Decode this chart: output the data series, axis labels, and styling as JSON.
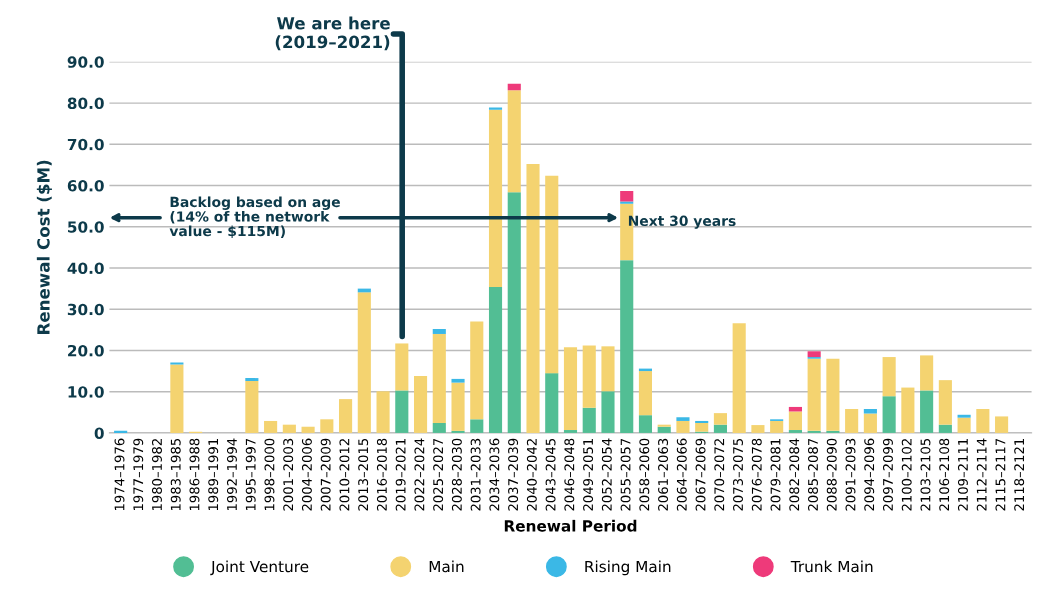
{
  "chart_data": {
    "type": "bar",
    "stacked": true,
    "xlabel": "Renewal Period",
    "ylabel": "Renewal Cost ($M)",
    "categories": [
      "1974–1976",
      "1977–1979",
      "1980–1982",
      "1983–1985",
      "1986–1988",
      "1989–1991",
      "1992–1994",
      "1995–1997",
      "1998–2000",
      "2001–2003",
      "2004–2006",
      "2007–2009",
      "2010–2012",
      "2013–2015",
      "2016–2018",
      "2019–2021",
      "2022–2024",
      "2025–2027",
      "2028–2030",
      "2031–2033",
      "2034–2036",
      "2037–2039",
      "2040–2042",
      "2043–2045",
      "2046–2048",
      "2049–2051",
      "2052–2054",
      "2055–2057",
      "2058–2060",
      "2061–2063",
      "2064–2066",
      "2067–2069",
      "2070–2072",
      "2073–2075",
      "2076–2078",
      "2079–2081",
      "2082–2084",
      "2085–2087",
      "2088–2090",
      "2091–2093",
      "2094–2096",
      "2097–2099",
      "2100–2102",
      "2103–2105",
      "2106–2108",
      "2109–2111",
      "2112–2114",
      "2115–2117",
      "2118–2121"
    ],
    "series": [
      {
        "name": "Joint Venture",
        "color": "#52be94",
        "values": [
          0,
          0,
          0,
          0,
          0,
          0,
          0,
          0,
          0,
          0,
          0,
          0,
          0,
          0,
          0,
          10.3,
          0,
          2.4,
          0.5,
          3.3,
          35.4,
          58.4,
          0,
          14.5,
          0.7,
          6.1,
          10.1,
          41.9,
          4.3,
          1.5,
          0,
          0.3,
          2.0,
          0,
          0,
          0,
          0.7,
          0.5,
          0.5,
          0,
          0,
          8.9,
          0,
          10.3,
          2.0,
          0,
          0,
          0,
          0
        ]
      },
      {
        "name": "Main",
        "color": "#f4d370",
        "values": [
          0,
          0,
          0,
          16.6,
          0.3,
          0,
          0,
          12.6,
          2.9,
          2.0,
          1.5,
          3.3,
          8.2,
          34.1,
          10.1,
          11.4,
          13.8,
          21.6,
          11.7,
          23.7,
          43.0,
          24.7,
          65.2,
          47.9,
          20.1,
          15.1,
          10.9,
          13.7,
          10.7,
          0.5,
          2.9,
          2.1,
          2.8,
          26.6,
          1.9,
          2.9,
          4.5,
          17.5,
          17.5,
          5.8,
          4.7,
          9.5,
          11.0,
          8.5,
          10.8,
          3.7,
          5.8,
          4.0,
          0
        ]
      },
      {
        "name": "Rising Main",
        "color": "#3bb8e6",
        "values": [
          0.5,
          0,
          0,
          0.5,
          0,
          0,
          0,
          0.7,
          0,
          0,
          0,
          0,
          0,
          0.9,
          0,
          0,
          0,
          1.2,
          0.9,
          0,
          0.5,
          0,
          0,
          0,
          0,
          0,
          0,
          0.5,
          0.6,
          0,
          0.9,
          0.5,
          0,
          0,
          0,
          0.4,
          0,
          0.4,
          0,
          0,
          1.1,
          0,
          0,
          0,
          0,
          0.7,
          0,
          0,
          0
        ]
      },
      {
        "name": "Trunk Main",
        "color": "#ee3a7a",
        "values": [
          0,
          0,
          0,
          0,
          0,
          0,
          0,
          0,
          0,
          0,
          0,
          0,
          0,
          0,
          0,
          0,
          0,
          0,
          0,
          0,
          0,
          1.6,
          0,
          0,
          0,
          0,
          0,
          2.6,
          0,
          0,
          0,
          0,
          0,
          0,
          0,
          0,
          1.1,
          1.4,
          0,
          0,
          0,
          0,
          0,
          0,
          0,
          0,
          0,
          0,
          0
        ]
      }
    ],
    "ylim": [
      0,
      90
    ],
    "yticks": [
      {
        "value": 0,
        "label": "0"
      },
      {
        "value": 10,
        "label": "10.0"
      },
      {
        "value": 20,
        "label": "20.0"
      },
      {
        "value": 30,
        "label": "30.0"
      },
      {
        "value": 40,
        "label": "40.0"
      },
      {
        "value": 50,
        "label": "50.0"
      },
      {
        "value": 60,
        "label": "60.0"
      },
      {
        "value": 70,
        "label": "70.0"
      },
      {
        "value": 80,
        "label": "80.0"
      },
      {
        "value": 90,
        "label": "90.0"
      }
    ],
    "grid": "y",
    "legend": "bottom",
    "marker": "circle",
    "annotations": [
      "We are here\n(2019–2021)",
      "Backlog based on age\n(14% of the network\nvalue - $115M)",
      "Next 30 years"
    ]
  }
}
